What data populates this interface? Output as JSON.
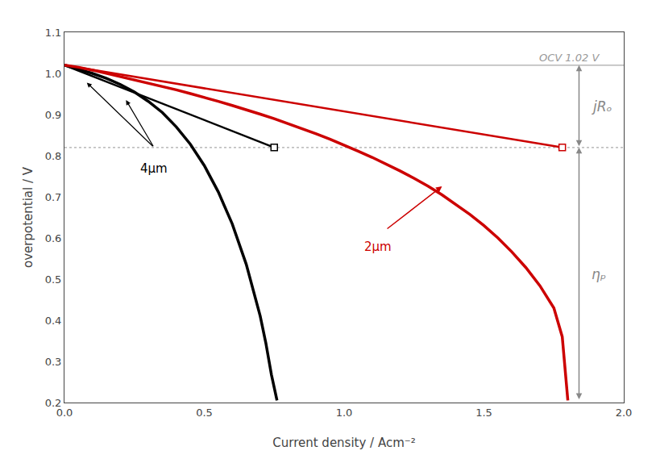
{
  "chart_data": {
    "type": "line",
    "xlabel": "Current density / Acm⁻²",
    "ylabel": "overpotential / V",
    "xlim": [
      0.0,
      2.0
    ],
    "ylim": [
      0.2,
      1.1
    ],
    "xticks": [
      {
        "value": 0.0,
        "label": "0.0"
      },
      0.5,
      {
        "value": 1.0,
        "label": "1.0"
      },
      1.5,
      {
        "value": 2.0,
        "label": "2.0"
      }
    ],
    "yticks": [
      0.2,
      0.3,
      0.4,
      0.5,
      0.6,
      0.7,
      0.8,
      0.9,
      {
        "value": 1.0,
        "label": "1.0"
      },
      1.1
    ],
    "grid": false,
    "series": [
      {
        "color": "#000000",
        "marker": "square",
        "x": [
          0.0,
          0.75
        ],
        "values": [
          1.02,
          0.82
        ]
      },
      {
        "color": "#cc0000",
        "marker": "square",
        "x": [
          0.0,
          1.78
        ],
        "values": [
          1.02,
          0.82
        ]
      },
      {
        "color": "#000000",
        "x": [
          0.0,
          0.05,
          0.1,
          0.15,
          0.2,
          0.25,
          0.3,
          0.35,
          0.4,
          0.45,
          0.5,
          0.55,
          0.6,
          0.65,
          0.7,
          0.72,
          0.74,
          0.76
        ],
        "values": [
          1.02,
          1.01,
          1.0,
          0.988,
          0.973,
          0.955,
          0.932,
          0.905,
          0.87,
          0.828,
          0.776,
          0.712,
          0.634,
          0.536,
          0.41,
          0.345,
          0.268,
          0.205
        ]
      },
      {
        "color": "#cc0000",
        "x": [
          0.0,
          0.05,
          0.1,
          0.15,
          0.2,
          0.25,
          0.3,
          0.35,
          0.4,
          0.45,
          0.5,
          0.55,
          0.6,
          0.65,
          0.7,
          0.75,
          0.8,
          0.85,
          0.9,
          0.95,
          1.0,
          1.05,
          1.1,
          1.15,
          1.2,
          1.25,
          1.3,
          1.35,
          1.4,
          1.45,
          1.5,
          1.55,
          1.6,
          1.65,
          1.7,
          1.75,
          1.78,
          1.8
        ],
        "values": [
          1.02,
          1.015,
          1.008,
          1.0,
          0.993,
          0.985,
          0.977,
          0.969,
          0.96,
          0.951,
          0.942,
          0.932,
          0.922,
          0.912,
          0.901,
          0.89,
          0.878,
          0.866,
          0.853,
          0.84,
          0.826,
          0.811,
          0.796,
          0.78,
          0.763,
          0.745,
          0.726,
          0.705,
          0.682,
          0.657,
          0.63,
          0.6,
          0.566,
          0.528,
          0.484,
          0.43,
          0.36,
          0.205
        ]
      }
    ],
    "hlines": [
      {
        "y": 1.02,
        "color": "#aaaaaa",
        "line_style": "solid",
        "text": "OCV 1.02 V"
      },
      {
        "y": 0.82,
        "color": "#aaaaaa",
        "line_style": "dotted"
      }
    ],
    "annotations": [
      {
        "text": "4μm",
        "color": "#000000"
      },
      {
        "text": "2μm",
        "color": "#cc0000"
      }
    ],
    "spans": [
      {
        "text": "jRₒ",
        "from": 0.82,
        "to": 1.02,
        "color": "#888888"
      },
      {
        "text": "ηₚ",
        "from": 0.205,
        "to": 0.82,
        "color": "#888888"
      }
    ]
  }
}
